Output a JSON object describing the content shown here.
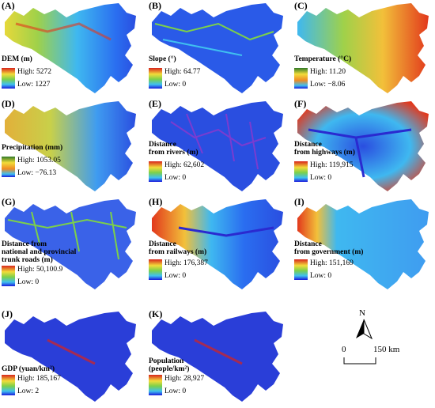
{
  "panels": [
    {
      "id": "A",
      "label": "(A)",
      "title": "DEM (m)",
      "high": "High: 5272",
      "low": "Low: 1227",
      "ramp": "jet"
    },
    {
      "id": "B",
      "label": "(B)",
      "title": "Slope (°)",
      "high": "High: 64.77",
      "low": "Low: 0",
      "ramp": "jet"
    },
    {
      "id": "C",
      "label": "(C)",
      "title": "Temperature (°C)",
      "high": "High: 11.20",
      "low": "Low: −8.06",
      "ramp": "rev"
    },
    {
      "id": "D",
      "label": "(D)",
      "title": "Precipitation (mm)",
      "high": "High: 1053.05",
      "low": "Low: −76.13",
      "ramp": "rev"
    },
    {
      "id": "E",
      "label": "(E)",
      "title": "Distance\nfrom rivers (m)",
      "high": "High: 62,602",
      "low": "Low: 0",
      "ramp": "jet"
    },
    {
      "id": "F",
      "label": "(F)",
      "title": "Distance\nfrom highways (m)",
      "high": "High: 119,915",
      "low": "Low: 0",
      "ramp": "jet"
    },
    {
      "id": "G",
      "label": "(G)",
      "title": "Distance from\nnational and provincial\ntrunk roads (m)",
      "high": "High: 50,100.9",
      "low": "Low: 0",
      "ramp": "jet"
    },
    {
      "id": "H",
      "label": "(H)",
      "title": "Distance\nfrom railways (m)",
      "high": "High: 176,387",
      "low": "Low: 0",
      "ramp": "jet"
    },
    {
      "id": "I",
      "label": "(I)",
      "title": "Distance\nfrom government (m)",
      "high": "High: 151,169",
      "low": "Low: 0",
      "ramp": "jet"
    },
    {
      "id": "J",
      "label": "(J)",
      "title": "GDP (yuan/km²)",
      "high": "High: 185,167",
      "low": "Low: 2",
      "ramp": "jet"
    },
    {
      "id": "K",
      "label": "(K)",
      "title": "Population\n(people/km²)",
      "high": "High: 28,927",
      "low": "Low: 0",
      "ramp": "jet"
    }
  ],
  "north_arrow": {
    "label": "N"
  },
  "scale_bar": {
    "start": "0",
    "end": "150 km"
  },
  "colors": {
    "deep_blue": "#1a1adc",
    "blue": "#2b5bf0",
    "cyan": "#3fc0f0",
    "green": "#7cd04a",
    "yellow": "#f2dc3a",
    "orange": "#f08a24",
    "red": "#d8241c"
  }
}
